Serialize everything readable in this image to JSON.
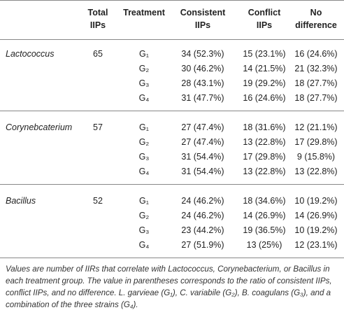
{
  "table": {
    "header": [
      [
        "",
        ""
      ],
      [
        "Total",
        "IIPs"
      ],
      [
        "Treatment",
        ""
      ],
      [
        "Consistent",
        "IIPs"
      ],
      [
        "Conflict",
        "IIPs"
      ],
      [
        "No",
        "difference"
      ]
    ],
    "groups": [
      {
        "name": "Lactococcus",
        "total": 65,
        "rows": [
          [
            "G₁",
            "34 (52.3%)",
            "15 (23.1%)",
            "16 (24.6%)"
          ],
          [
            "G₂",
            "30 (46.2%)",
            "14 (21.5%)",
            "21 (32.3%)"
          ],
          [
            "G₃",
            "28 (43.1%)",
            "19 (29.2%)",
            "18 (27.7%)"
          ],
          [
            "G₄",
            "31 (47.7%)",
            "16 (24.6%)",
            "18 (27.7%)"
          ]
        ]
      },
      {
        "name": "Corynebcaterium",
        "total": 57,
        "rows": [
          [
            "G₁",
            "27 (47.4%)",
            "18 (31.6%)",
            "12 (21.1%)"
          ],
          [
            "G₂",
            "27 (47.4%)",
            "13 (22.8%)",
            "17 (29.8%)"
          ],
          [
            "G₃",
            "31 (54.4%)",
            "17 (29.8%)",
            "9 (15.8%)"
          ],
          [
            "G₄",
            "31 (54.4%)",
            "13 (22.8%)",
            "13 (22.8%)"
          ]
        ]
      },
      {
        "name": "Bacillus",
        "total": 52,
        "rows": [
          [
            "G₁",
            "24 (46.2%)",
            "18 (34.6%)",
            "10 (19.2%)"
          ],
          [
            "G₂",
            "24 (46.2%)",
            "14 (26.9%)",
            "14 (26.9%)"
          ],
          [
            "G₃",
            "23 (44.2%)",
            "19 (36.5%)",
            "10 (19.2%)"
          ],
          [
            "G₄",
            "27 (51.9%)",
            "13 (25%)",
            "12 (23.1%)"
          ]
        ]
      }
    ],
    "footnote": [
      {
        "text": "Values are number of IIRs that correlate with ",
        "italic": true
      },
      {
        "text": "Lactococcus, Corynebacterium,",
        "italic": true
      },
      {
        "text": " or ",
        "italic": true
      },
      {
        "text": "Bacillus",
        "italic": true
      },
      {
        "text": " in each treatment group. The value in parentheses corresponds to the ratio of consistent IIPs, conflict IIPs, and no difference. ",
        "italic": true
      },
      {
        "text": "L. garvieae",
        "italic": true
      },
      {
        "text": " (G₁), ",
        "italic": true
      },
      {
        "text": "C. variabile",
        "italic": true
      },
      {
        "text": " (G₂), ",
        "italic": true
      },
      {
        "text": "B. coagulans",
        "italic": true
      },
      {
        "text": " (G₃), and a combination of the three strains (G₄).",
        "italic": true
      }
    ]
  }
}
